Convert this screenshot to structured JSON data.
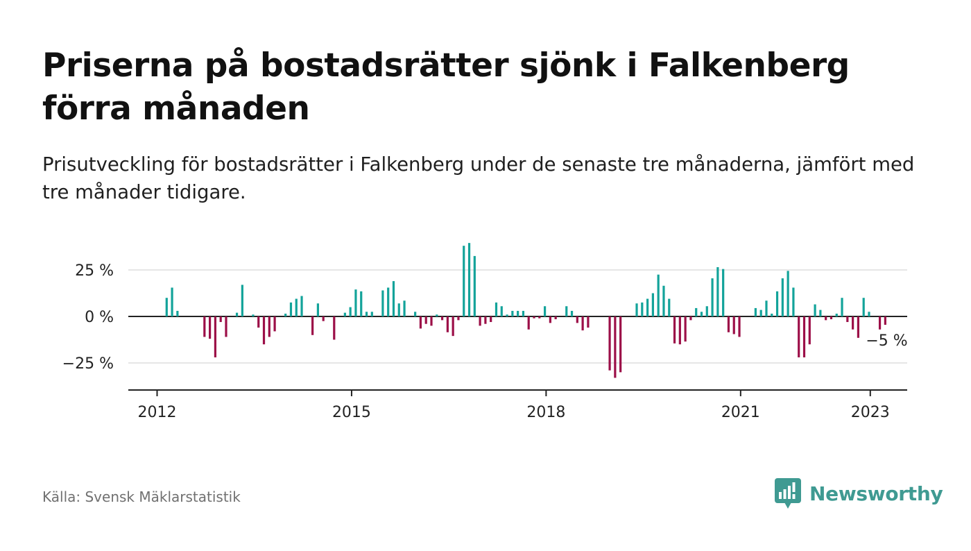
{
  "title": "Priserna på bostadsrätter sjönk i Falkenberg förra månaden",
  "subtitle": "Prisutveckling för bostadsrätter i Falkenberg under de senaste tre månaderna, jämfört med tre månader tidigare.",
  "source": "Källa: Svensk Mäklarstatistik",
  "brand": {
    "name": "Newsworthy",
    "icon": "newsworthy-logo-icon",
    "color": "#3f9a92"
  },
  "colors": {
    "positive": "#13a39a",
    "negative": "#9c0f48",
    "axis": "#222222",
    "grid": "#dddddd",
    "text": "#222222"
  },
  "chart_data": {
    "type": "bar",
    "x_start": "2012-01",
    "x_end": "2023-02",
    "x_ticks": [
      "2012",
      "2015",
      "2018",
      "2021",
      "2023"
    ],
    "y_ticks": [
      {
        "value": 25,
        "label": "25 %"
      },
      {
        "value": 0,
        "label": "0 %"
      },
      {
        "value": -25,
        "label": "−25 %"
      }
    ],
    "ylim": [
      -39,
      40
    ],
    "grid": true,
    "last_value_label": "−5 %",
    "values": [
      0,
      10,
      15.5,
      3,
      0,
      0,
      0,
      0,
      -11,
      -12,
      -22,
      -3,
      -11,
      0,
      2,
      17,
      0,
      1,
      -6,
      -15,
      -11,
      -8,
      0,
      1.5,
      7.5,
      9.5,
      11,
      0,
      -10,
      7,
      -2.5,
      0,
      -12.5,
      0,
      2,
      5,
      14.5,
      13.5,
      2.5,
      2.5,
      0,
      14,
      15.5,
      19,
      7,
      8.5,
      0,
      2.5,
      -6.5,
      -4,
      -5,
      1,
      -2,
      -8.5,
      -10.5,
      -2,
      38,
      39.5,
      32.5,
      -5,
      -4,
      -3,
      7.5,
      5.5,
      1,
      3,
      3,
      3,
      -7,
      -1,
      -1,
      5.5,
      -3.5,
      -1.5,
      0,
      5.5,
      3,
      -3.5,
      -7.5,
      -6,
      0,
      0,
      0,
      -29,
      -33,
      -30,
      0,
      0,
      7,
      7.5,
      9.5,
      12.5,
      22.5,
      16.5,
      9.5,
      -14.5,
      -15,
      -13.5,
      -2,
      4.5,
      2.5,
      5.5,
      20.5,
      26.5,
      25.5,
      -8.5,
      -9.5,
      -11,
      0,
      0,
      4.5,
      3.5,
      8.5,
      1.5,
      13.5,
      20.5,
      24.5,
      15.5,
      -22,
      -22,
      -15,
      6.5,
      3.5,
      -2,
      -1.5,
      1.5,
      10,
      -3,
      -7,
      -11.5,
      10,
      2.5,
      0,
      -7,
      -4.5
    ]
  }
}
